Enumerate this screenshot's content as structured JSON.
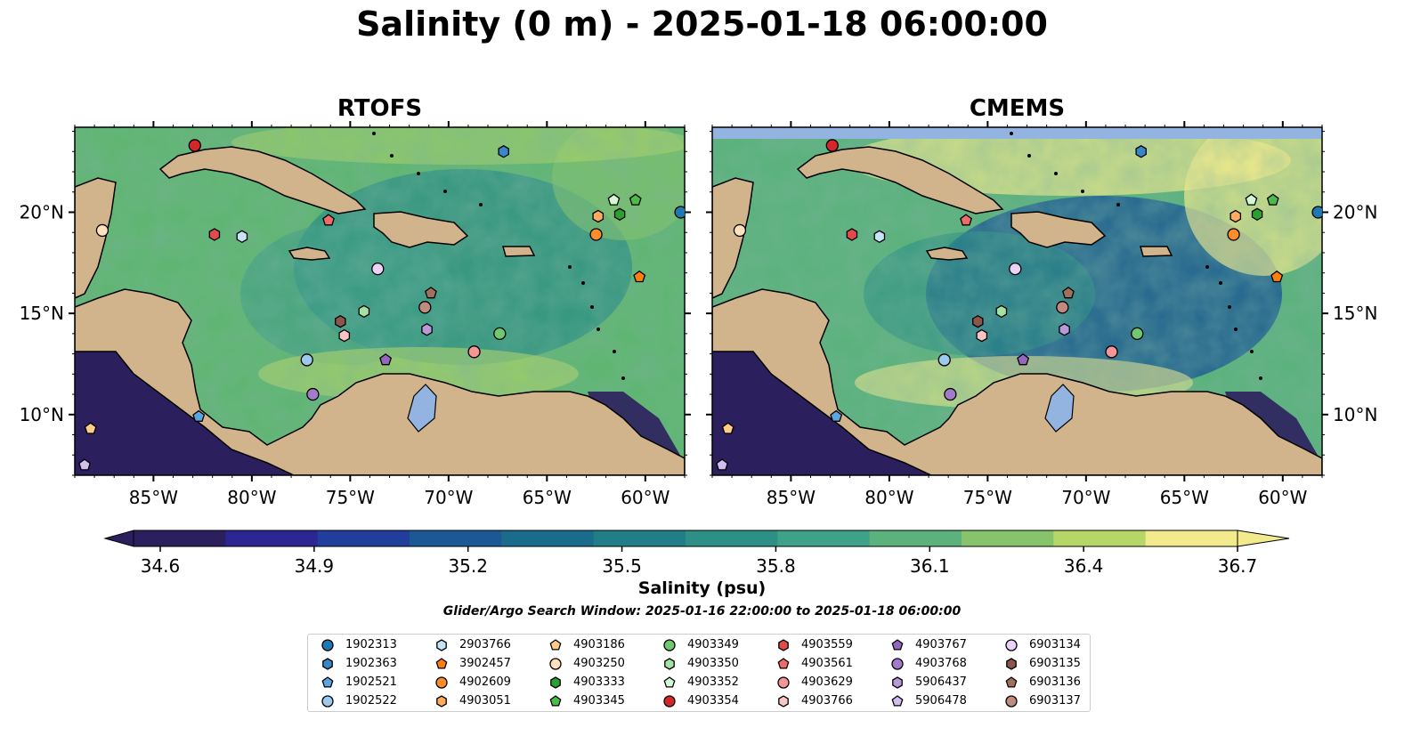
{
  "title": "Salinity (0 m) - 2025-01-18 06:00:00",
  "panels": [
    {
      "title": "RTOFS"
    },
    {
      "title": "CMEMS"
    }
  ],
  "colorbar": {
    "label": "Salinity (psu)",
    "ticks": [
      "34.6",
      "34.9",
      "35.2",
      "35.5",
      "35.8",
      "36.1",
      "36.4",
      "36.7"
    ],
    "min": 34.6,
    "max": 36.7,
    "extend": "both",
    "colors": [
      "#2c1f5e",
      "#2b2694",
      "#213e9c",
      "#1b5895",
      "#1b6c8c",
      "#217e88",
      "#2d8f86",
      "#3da287",
      "#5bb27c",
      "#86c36b",
      "#b6d767",
      "#f2ea8d"
    ]
  },
  "search_window": "Glider/Argo Search Window: 2025-01-16 22:00:00 to 2025-01-18 06:00:00",
  "map": {
    "lon_range": [
      -89,
      -58
    ],
    "lat_range": [
      7,
      24.2
    ],
    "lon_ticks": [
      "85°W",
      "80°W",
      "75°W",
      "70°W",
      "65°W",
      "60°W"
    ],
    "lat_ticks": [
      "10°N",
      "15°N",
      "20°N"
    ],
    "land_color": "#d2b48c",
    "ocean_base": "#5fb571",
    "lake_color": "#93b3e0"
  },
  "chart_data": {
    "type": "scatter",
    "x_label": "",
    "y_label": "",
    "series": [
      {
        "name": "1902313",
        "marker": "circle",
        "color": "#1f77b4",
        "lon": -58.2,
        "lat": 20.0
      },
      {
        "name": "1902363",
        "marker": "hexagon",
        "color": "#3a86c8",
        "lon": -67.2,
        "lat": 23.0
      },
      {
        "name": "1902521",
        "marker": "pentagon",
        "color": "#5ba6e0",
        "lon": -82.7,
        "lat": 9.9
      },
      {
        "name": "1902522",
        "marker": "circle",
        "color": "#9dc9ef",
        "lon": -77.2,
        "lat": 12.7
      },
      {
        "name": "2903766",
        "marker": "hexagon",
        "color": "#c6e4f7",
        "lon": -80.5,
        "lat": 18.8
      },
      {
        "name": "3902457",
        "marker": "pentagon",
        "color": "#ff7f0e",
        "lon": -60.3,
        "lat": 16.8
      },
      {
        "name": "4902609",
        "marker": "circle",
        "color": "#ff8c2a",
        "lon": -62.5,
        "lat": 18.9
      },
      {
        "name": "4903051",
        "marker": "hexagon",
        "color": "#ffaa5e",
        "lon": -62.4,
        "lat": 19.8
      },
      {
        "name": "4903186",
        "marker": "pentagon",
        "color": "#ffcc8a",
        "lon": -88.2,
        "lat": 9.3
      },
      {
        "name": "4903250",
        "marker": "circle",
        "color": "#ffe2bd",
        "lon": -87.6,
        "lat": 19.1
      },
      {
        "name": "4903333",
        "marker": "hexagon",
        "color": "#2ca02c",
        "lon": -61.3,
        "lat": 19.9
      },
      {
        "name": "4903345",
        "marker": "pentagon",
        "color": "#4cbb4c",
        "lon": -60.5,
        "lat": 20.6
      },
      {
        "name": "4903349",
        "marker": "circle",
        "color": "#70c870",
        "lon": -67.4,
        "lat": 14.0
      },
      {
        "name": "4903350",
        "marker": "hexagon",
        "color": "#a3e2a3",
        "lon": -74.3,
        "lat": 15.1
      },
      {
        "name": "4903352",
        "marker": "pentagon",
        "color": "#d4f7d4",
        "lon": -61.6,
        "lat": 20.6
      },
      {
        "name": "4903354",
        "marker": "circle",
        "color": "#d62728",
        "lon": -82.9,
        "lat": 23.3
      },
      {
        "name": "4903559",
        "marker": "hexagon",
        "color": "#e24a4b",
        "lon": -81.9,
        "lat": 18.9
      },
      {
        "name": "4903561",
        "marker": "pentagon",
        "color": "#ee6a6b",
        "lon": -76.1,
        "lat": 19.6
      },
      {
        "name": "4903629",
        "marker": "circle",
        "color": "#f59596",
        "lon": -68.7,
        "lat": 13.1
      },
      {
        "name": "4903766",
        "marker": "hexagon",
        "color": "#fbc4c5",
        "lon": -75.3,
        "lat": 13.9
      },
      {
        "name": "4903767",
        "marker": "pentagon",
        "color": "#9467bd",
        "lon": -73.2,
        "lat": 12.7
      },
      {
        "name": "4903768",
        "marker": "circle",
        "color": "#a27ccb",
        "lon": -76.9,
        "lat": 11.0
      },
      {
        "name": "5906437",
        "marker": "hexagon",
        "color": "#b99ad8",
        "lon": -71.1,
        "lat": 14.2
      },
      {
        "name": "5906478",
        "marker": "pentagon",
        "color": "#d2bdf0",
        "lon": -88.5,
        "lat": 7.5
      },
      {
        "name": "6903134",
        "marker": "circle",
        "color": "#ebd2f7",
        "lon": -73.6,
        "lat": 17.2
      },
      {
        "name": "6903135",
        "marker": "hexagon",
        "color": "#8c564b",
        "lon": -75.5,
        "lat": 14.6
      },
      {
        "name": "6903136",
        "marker": "pentagon",
        "color": "#a0705e",
        "lon": -70.9,
        "lat": 16.0
      },
      {
        "name": "6903137",
        "marker": "circle",
        "color": "#c08a7f",
        "lon": -71.2,
        "lat": 15.3
      }
    ]
  }
}
